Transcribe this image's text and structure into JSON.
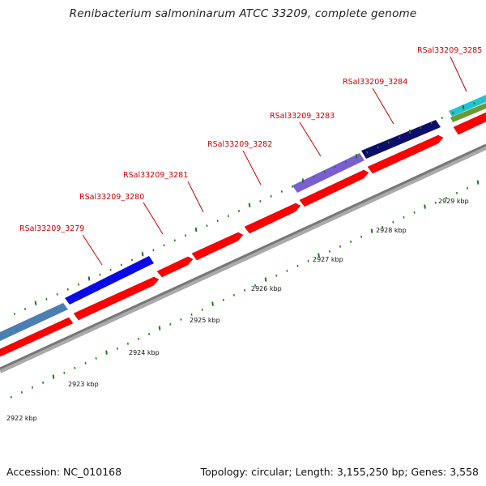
{
  "title": "Renibacterium salmoninarum ATCC 33209, complete genome",
  "footer": {
    "accession": "Accession: NC_010168",
    "stats": "Topology: circular; Length: 3,155,250 bp; Genes: 3,558"
  },
  "colors": {
    "cds_forward": "#ff0000",
    "backbone": "#888888",
    "tick": "#1a7a1a",
    "label": "#cc0000"
  },
  "scale_labels": [
    {
      "text": "2922 kbp"
    },
    {
      "text": "2923 kbp"
    },
    {
      "text": "2924 kbp"
    },
    {
      "text": "2925 kbp"
    },
    {
      "text": "2926 kbp"
    },
    {
      "text": "2927 kbp"
    },
    {
      "text": "2928 kbp"
    },
    {
      "text": "2929 kbp"
    }
  ],
  "gene_labels": [
    {
      "text": "RSal33209_3279"
    },
    {
      "text": "RSal33209_3280"
    },
    {
      "text": "RSal33209_3281"
    },
    {
      "text": "RSal33209_3282"
    },
    {
      "text": "RSal33209_3283"
    },
    {
      "text": "RSal33209_3284"
    },
    {
      "text": "RSal33209_3285"
    }
  ],
  "function_bars": [
    {
      "color": "#4a7fb0"
    },
    {
      "color": "#0a0ae6"
    },
    {
      "color": "#7a5fd0"
    },
    {
      "color": "#0d0d6a"
    },
    {
      "color": "#20c4d0"
    },
    {
      "color": "#6a9a30"
    }
  ]
}
